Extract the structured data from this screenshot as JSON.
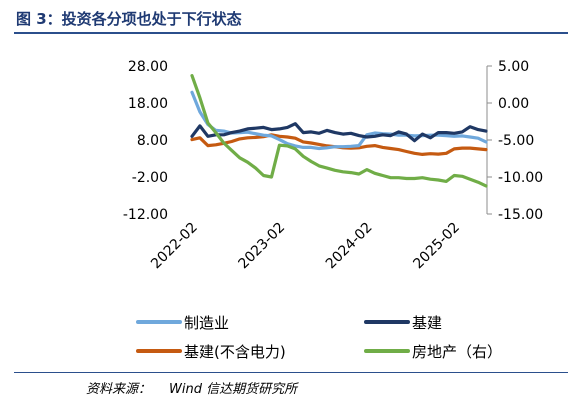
{
  "header": {
    "title": "图 3：投资各分项也处于下行状态"
  },
  "footer": {
    "source_label": "资料来源：",
    "source_value": "Wind 信达期货研究所"
  },
  "chart_data": {
    "type": "line",
    "x": [
      "2022-02",
      "2022-03",
      "2022-04",
      "2022-05",
      "2022-06",
      "2022-07",
      "2022-08",
      "2022-09",
      "2022-10",
      "2022-11",
      "2022-12",
      "2023-02",
      "2023-03",
      "2023-04",
      "2023-05",
      "2023-06",
      "2023-07",
      "2023-08",
      "2023-09",
      "2023-10",
      "2023-11",
      "2023-12",
      "2024-02",
      "2024-03",
      "2024-04",
      "2024-05",
      "2024-06",
      "2024-07",
      "2024-08",
      "2024-09",
      "2024-10",
      "2024-11",
      "2024-12",
      "2025-02",
      "2025-03",
      "2025-04",
      "2025-05",
      "2025-06"
    ],
    "x_tick_labels": [
      "2022-02",
      "2023-02",
      "2024-02",
      "2025-02"
    ],
    "y_left": {
      "ticks": [
        "28.00",
        "18.00",
        "8.00",
        "-2.00",
        "-12.00"
      ],
      "range": [
        -12,
        28
      ]
    },
    "y_right": {
      "ticks": [
        "5.00",
        "0.00",
        "-5.00",
        "-10.00",
        "-15.00"
      ],
      "range": [
        -15,
        5
      ]
    },
    "series": [
      {
        "name": "制造业",
        "axis": "left",
        "color": "#6fa8dc",
        "values": [
          20.9,
          15.6,
          12.2,
          10.6,
          10.4,
          9.9,
          10.0,
          10.1,
          9.7,
          9.3,
          9.1,
          8.1,
          7.0,
          6.4,
          6.0,
          6.0,
          5.7,
          5.9,
          6.2,
          6.2,
          6.3,
          6.5,
          9.4,
          9.9,
          9.7,
          9.6,
          9.3,
          9.3,
          9.1,
          9.2,
          9.3,
          9.3,
          9.2,
          9.0,
          9.1,
          8.8,
          8.5,
          7.5
        ]
      },
      {
        "name": "基建",
        "axis": "right",
        "color": "#1f3864",
        "values": [
          -4.5,
          -3.1,
          -4.5,
          -4.3,
          -4.3,
          -4.0,
          -3.8,
          -3.5,
          -3.4,
          -3.3,
          -3.6,
          -3.5,
          -3.3,
          -2.8,
          -4.0,
          -3.9,
          -4.1,
          -3.7,
          -4.0,
          -4.2,
          -4.1,
          -4.4,
          -4.6,
          -4.5,
          -4.3,
          -4.4,
          -3.9,
          -4.2,
          -5.1,
          -4.2,
          -4.7,
          -4.0,
          -4.0,
          -4.1,
          -3.9,
          -3.2,
          -3.6,
          -3.8
        ]
      },
      {
        "name": "基建(不含电力)",
        "axis": "left",
        "color": "#c55a11",
        "values": [
          8.1,
          8.6,
          6.5,
          6.7,
          7.1,
          7.6,
          8.3,
          8.6,
          8.7,
          8.9,
          9.4,
          9.0,
          8.8,
          8.5,
          7.5,
          7.2,
          6.8,
          6.4,
          6.2,
          5.9,
          5.8,
          5.9,
          6.3,
          6.5,
          6.0,
          5.7,
          5.4,
          4.9,
          4.4,
          4.1,
          4.3,
          4.2,
          4.4,
          5.6,
          5.8,
          5.8,
          5.6,
          5.4
        ]
      },
      {
        "name": "房地产（右）",
        "axis": "right",
        "color": "#70ad47",
        "values": [
          3.7,
          0.7,
          -2.7,
          -4.0,
          -5.4,
          -6.4,
          -7.4,
          -8.0,
          -8.8,
          -9.8,
          -10.0,
          -5.7,
          -5.8,
          -6.2,
          -7.2,
          -7.9,
          -8.5,
          -8.8,
          -9.1,
          -9.3,
          -9.4,
          -9.6,
          -9.0,
          -9.5,
          -9.8,
          -10.1,
          -10.1,
          -10.2,
          -10.2,
          -10.1,
          -10.3,
          -10.4,
          -10.6,
          -9.8,
          -9.9,
          -10.3,
          -10.7,
          -11.2
        ]
      }
    ],
    "legend": {
      "position": "bottom",
      "columns": 2
    }
  }
}
